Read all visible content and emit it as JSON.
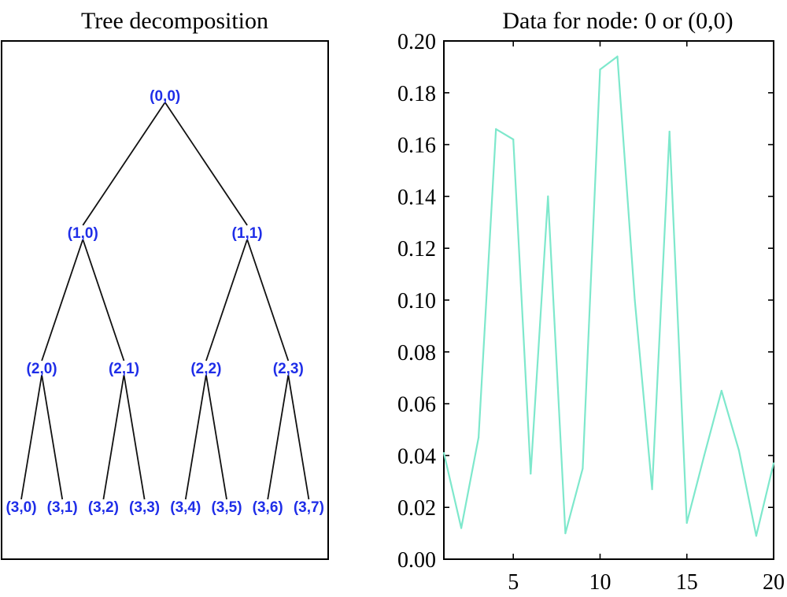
{
  "tree_panel": {
    "title": "Tree decomposition",
    "nodes": [
      {
        "id": "n00",
        "label": "(0,0)",
        "depth": 0,
        "pos": 0
      },
      {
        "id": "n10",
        "label": "(1,0)",
        "depth": 1,
        "pos": 0
      },
      {
        "id": "n11",
        "label": "(1,1)",
        "depth": 1,
        "pos": 1
      },
      {
        "id": "n20",
        "label": "(2,0)",
        "depth": 2,
        "pos": 0
      },
      {
        "id": "n21",
        "label": "(2,1)",
        "depth": 2,
        "pos": 1
      },
      {
        "id": "n22",
        "label": "(2,2)",
        "depth": 2,
        "pos": 2
      },
      {
        "id": "n23",
        "label": "(2,3)",
        "depth": 2,
        "pos": 3
      },
      {
        "id": "n30",
        "label": "(3,0)",
        "depth": 3,
        "pos": 0
      },
      {
        "id": "n31",
        "label": "(3,1)",
        "depth": 3,
        "pos": 1
      },
      {
        "id": "n32",
        "label": "(3,2)",
        "depth": 3,
        "pos": 2
      },
      {
        "id": "n33",
        "label": "(3,3)",
        "depth": 3,
        "pos": 3
      },
      {
        "id": "n34",
        "label": "(3,4)",
        "depth": 3,
        "pos": 4
      },
      {
        "id": "n35",
        "label": "(3,5)",
        "depth": 3,
        "pos": 5
      },
      {
        "id": "n36",
        "label": "(3,6)",
        "depth": 3,
        "pos": 6
      },
      {
        "id": "n37",
        "label": "(3,7)",
        "depth": 3,
        "pos": 7
      }
    ],
    "edges": [
      [
        "n00",
        "n10"
      ],
      [
        "n00",
        "n11"
      ],
      [
        "n10",
        "n20"
      ],
      [
        "n10",
        "n21"
      ],
      [
        "n11",
        "n22"
      ],
      [
        "n11",
        "n23"
      ],
      [
        "n20",
        "n30"
      ],
      [
        "n20",
        "n31"
      ],
      [
        "n21",
        "n32"
      ],
      [
        "n21",
        "n33"
      ],
      [
        "n22",
        "n34"
      ],
      [
        "n22",
        "n35"
      ],
      [
        "n23",
        "n36"
      ],
      [
        "n23",
        "n37"
      ]
    ],
    "node_color": "#1f2ee8",
    "edge_color": "#111111"
  },
  "chart_data": {
    "type": "line",
    "title": "Data for node: 0 or (0,0)",
    "xlabel": "",
    "ylabel": "",
    "xlim": [
      1,
      20
    ],
    "ylim": [
      0,
      0.2
    ],
    "xticks": [
      5,
      10,
      15,
      20
    ],
    "yticks": [
      "0.00",
      "0.02",
      "0.04",
      "0.06",
      "0.08",
      "0.10",
      "0.12",
      "0.14",
      "0.16",
      "0.18",
      "0.20"
    ],
    "grid": false,
    "series": [
      {
        "color": "#7ee8cc",
        "x": [
          1,
          2,
          3,
          4,
          5,
          6,
          7,
          8,
          9,
          10,
          11,
          12,
          13,
          14,
          15,
          16,
          17,
          18,
          19,
          20
        ],
        "y": [
          0.041,
          0.012,
          0.047,
          0.166,
          0.162,
          0.033,
          0.14,
          0.01,
          0.035,
          0.189,
          0.194,
          0.1,
          0.027,
          0.165,
          0.014,
          0.04,
          0.065,
          0.042,
          0.009,
          0.037
        ]
      }
    ]
  }
}
